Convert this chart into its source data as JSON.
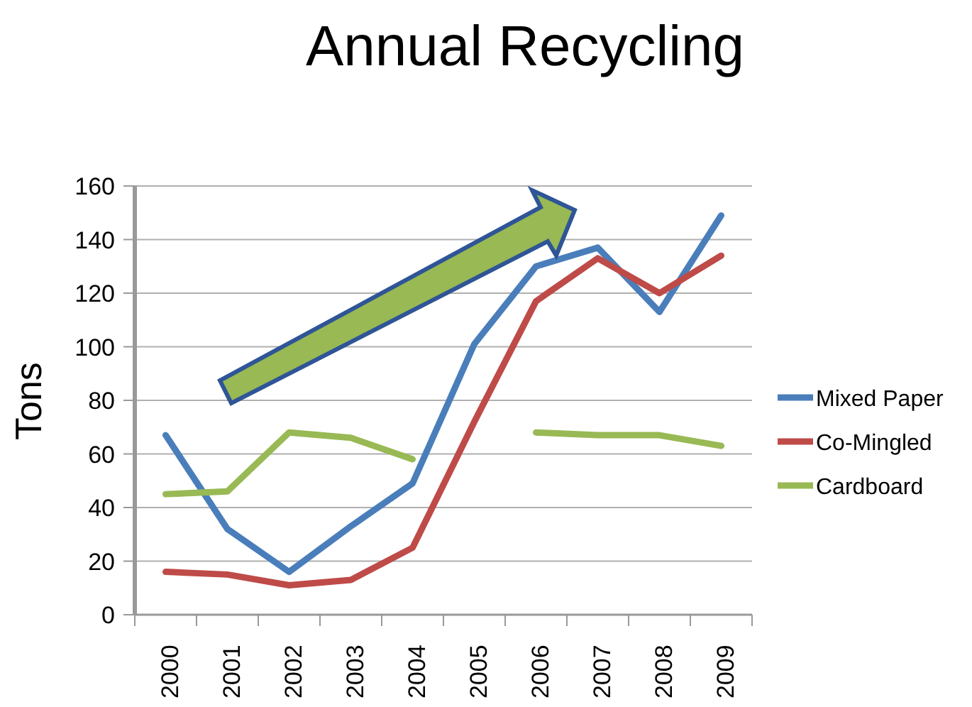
{
  "chart_data": {
    "type": "line",
    "title": "Annual Recycling",
    "ylabel": "Tons",
    "categories": [
      "2000",
      "2001",
      "2002",
      "2003",
      "2004",
      "2005",
      "2006",
      "2007",
      "2008",
      "2009"
    ],
    "series": [
      {
        "name": "Mixed Paper",
        "color": "#4a7ebb",
        "values": [
          67,
          32,
          16,
          33,
          49,
          101,
          130,
          137,
          113,
          149
        ]
      },
      {
        "name": "Co-Mingled",
        "color": "#be4b48",
        "values": [
          16,
          15,
          11,
          13,
          25,
          72,
          117,
          133,
          120,
          134
        ]
      },
      {
        "name": "Cardboard",
        "color": "#98b954",
        "values": [
          45,
          46,
          68,
          66,
          58,
          null,
          68,
          67,
          67,
          63
        ]
      }
    ],
    "ylim": [
      0,
      160
    ],
    "yticks": [
      0,
      20,
      40,
      60,
      80,
      100,
      120,
      140,
      160
    ],
    "grid": "y",
    "legend": "right",
    "marker": "none",
    "line_style": "solid"
  }
}
